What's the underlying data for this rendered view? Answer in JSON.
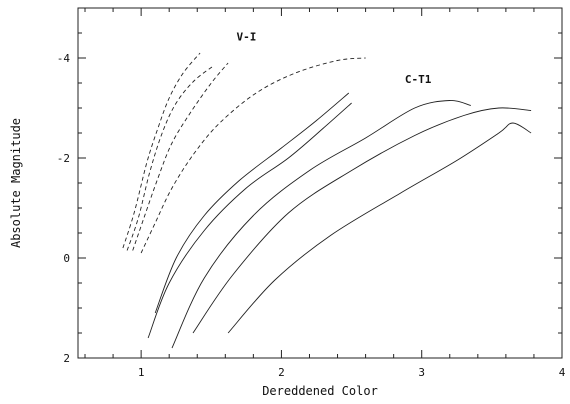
{
  "chart_data": {
    "type": "line",
    "title": "",
    "xlabel": "Dereddened Color",
    "ylabel": "Absolute Magnitude",
    "xlim": [
      0.55,
      4.0
    ],
    "ylim": [
      2.0,
      -5.0
    ],
    "y_inverted": true,
    "x_ticks": [
      {
        "value": 1,
        "label": "1"
      },
      {
        "value": 2,
        "label": "2"
      },
      {
        "value": 3,
        "label": "3"
      },
      {
        "value": 4,
        "label": "4"
      }
    ],
    "y_ticks": [
      {
        "value": -4,
        "label": "-4"
      },
      {
        "value": -2,
        "label": "-2"
      },
      {
        "value": 0,
        "label": "0"
      },
      {
        "value": 2,
        "label": "2"
      }
    ],
    "grid": false,
    "annotations": [
      {
        "text": "V-I",
        "x": 1.68,
        "y": -4.35
      },
      {
        "text": "C-T1",
        "x": 2.88,
        "y": -3.5
      }
    ],
    "series": [
      {
        "group": "V-I",
        "style": "dashed",
        "points": [
          [
            0.87,
            -0.2
          ],
          [
            0.95,
            -0.9
          ],
          [
            1.04,
            -1.9
          ],
          [
            1.12,
            -2.6
          ],
          [
            1.2,
            -3.2
          ],
          [
            1.3,
            -3.7
          ],
          [
            1.42,
            -4.1
          ]
        ]
      },
      {
        "group": "V-I",
        "style": "dashed",
        "points": [
          [
            0.9,
            -0.15
          ],
          [
            0.98,
            -0.8
          ],
          [
            1.06,
            -1.7
          ],
          [
            1.15,
            -2.5
          ],
          [
            1.25,
            -3.1
          ],
          [
            1.38,
            -3.55
          ],
          [
            1.52,
            -3.85
          ]
        ]
      },
      {
        "group": "V-I",
        "style": "dashed",
        "points": [
          [
            0.94,
            -0.15
          ],
          [
            1.02,
            -0.8
          ],
          [
            1.12,
            -1.6
          ],
          [
            1.22,
            -2.3
          ],
          [
            1.35,
            -2.9
          ],
          [
            1.5,
            -3.5
          ],
          [
            1.62,
            -3.9
          ]
        ]
      },
      {
        "group": "V-I",
        "style": "dashed",
        "points": [
          [
            1.0,
            -0.1
          ],
          [
            1.1,
            -0.7
          ],
          [
            1.22,
            -1.4
          ],
          [
            1.38,
            -2.1
          ],
          [
            1.56,
            -2.7
          ],
          [
            1.82,
            -3.3
          ],
          [
            2.1,
            -3.7
          ],
          [
            2.4,
            -3.95
          ],
          [
            2.6,
            -4.0
          ]
        ]
      },
      {
        "group": "C-T1",
        "style": "solid",
        "points": [
          [
            1.1,
            1.1
          ],
          [
            1.25,
            0.0
          ],
          [
            1.45,
            -0.85
          ],
          [
            1.7,
            -1.55
          ],
          [
            2.0,
            -2.2
          ],
          [
            2.25,
            -2.75
          ],
          [
            2.48,
            -3.3
          ]
        ]
      },
      {
        "group": "C-T1",
        "style": "solid",
        "points": [
          [
            1.05,
            1.6
          ],
          [
            1.2,
            0.5
          ],
          [
            1.45,
            -0.55
          ],
          [
            1.75,
            -1.4
          ],
          [
            2.05,
            -2.0
          ],
          [
            2.3,
            -2.6
          ],
          [
            2.5,
            -3.1
          ]
        ]
      },
      {
        "group": "C-T1",
        "style": "solid",
        "points": [
          [
            1.22,
            1.8
          ],
          [
            1.45,
            0.4
          ],
          [
            1.8,
            -0.85
          ],
          [
            2.2,
            -1.75
          ],
          [
            2.6,
            -2.4
          ],
          [
            2.95,
            -3.0
          ],
          [
            3.2,
            -3.15
          ],
          [
            3.35,
            -3.05
          ]
        ]
      },
      {
        "group": "C-T1",
        "style": "solid",
        "points": [
          [
            1.37,
            1.5
          ],
          [
            1.65,
            0.35
          ],
          [
            2.05,
            -0.9
          ],
          [
            2.5,
            -1.75
          ],
          [
            2.95,
            -2.45
          ],
          [
            3.3,
            -2.85
          ],
          [
            3.55,
            -3.0
          ],
          [
            3.78,
            -2.95
          ]
        ]
      },
      {
        "group": "C-T1",
        "style": "solid",
        "points": [
          [
            1.62,
            1.5
          ],
          [
            1.95,
            0.45
          ],
          [
            2.35,
            -0.45
          ],
          [
            2.85,
            -1.3
          ],
          [
            3.25,
            -1.95
          ],
          [
            3.55,
            -2.5
          ],
          [
            3.65,
            -2.7
          ],
          [
            3.78,
            -2.5
          ]
        ]
      }
    ]
  }
}
